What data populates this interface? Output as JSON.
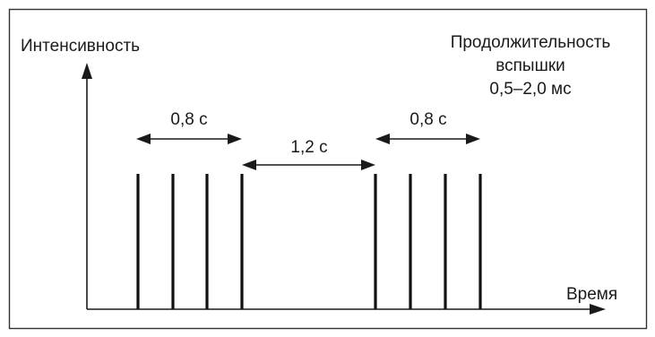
{
  "diagram": {
    "y_axis_label": "Интенсивность",
    "x_axis_label": "Время",
    "note_line1": "Продолжительность",
    "note_line2": "вспышки",
    "note_line3": "0,5–2,0 мс",
    "interval_left": "0,8 с",
    "interval_middle": "1,2 с",
    "interval_right": "0,8 с",
    "flash_groups": [
      {
        "flash_count": 4
      },
      {
        "flash_count": 4
      }
    ],
    "colors": {
      "ink": "#1a1a1a",
      "border": "#333333",
      "background": "#ffffff"
    }
  }
}
